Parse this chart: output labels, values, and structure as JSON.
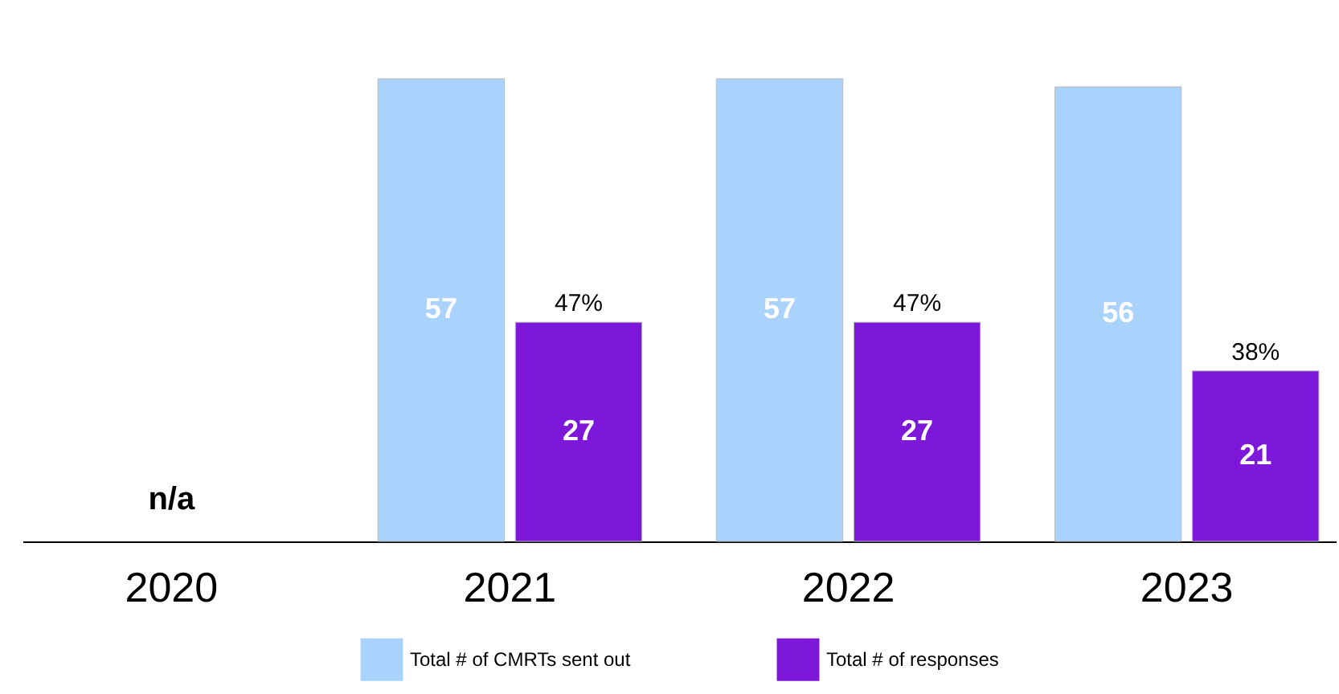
{
  "chart_data": {
    "type": "bar",
    "categories": [
      "2020",
      "2021",
      "2022",
      "2023"
    ],
    "series": [
      {
        "name": "Total # of CMRTs sent out",
        "color": "#a9d3fc",
        "values": [
          null,
          57,
          57,
          56
        ]
      },
      {
        "name": "Total # of responses",
        "color": "#7d17d9",
        "values": [
          null,
          27,
          27,
          21
        ]
      }
    ],
    "data_labels": true,
    "legend": "bottom",
    "grid": false,
    "tick_labels": "x",
    "annotations": [
      "n/a",
      {
        "text": "47%",
        "x": "2021",
        "y": 27
      },
      {
        "text": "47%",
        "x": "2022",
        "y": 27
      },
      {
        "text": "38%",
        "x": "2023",
        "y": 21
      }
    ]
  }
}
